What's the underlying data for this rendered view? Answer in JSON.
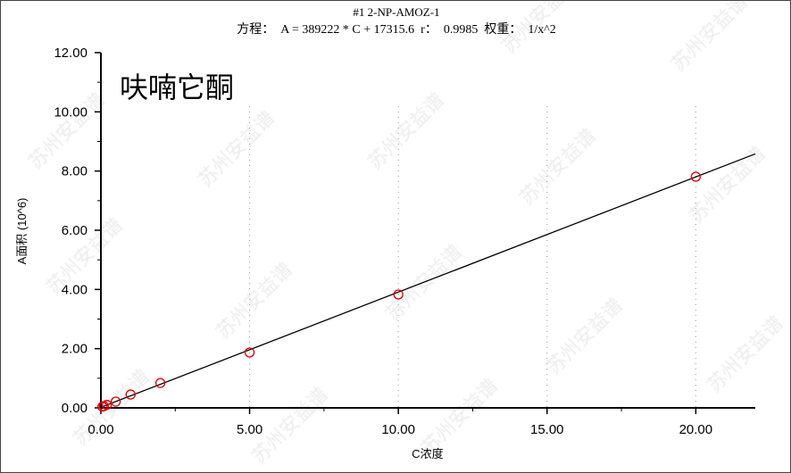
{
  "header": {
    "sample": "#1  2-NP-AMOZ-1",
    "equation": "方程：  A = 389222 * C + 17315.6  r：  0.9985  权重：  1/x^2"
  },
  "watermark": "苏州安益谱",
  "chart_data": {
    "type": "scatter",
    "title": "",
    "annotation": "呋喃它酮",
    "xlabel": "C浓度",
    "ylabel": "A面积 (10^6)",
    "xlim": [
      0,
      22
    ],
    "ylim": [
      0,
      12
    ],
    "xticks": [
      "0.00",
      "5.00",
      "10.00",
      "15.00",
      "20.00"
    ],
    "yticks": [
      "0.00",
      "2.00",
      "4.00",
      "6.00",
      "8.00",
      "10.00",
      "12.00"
    ],
    "grid": "dotted vertical at major x ticks",
    "points": {
      "x": [
        0.05,
        0.1,
        0.2,
        0.5,
        1,
        2,
        5,
        10,
        20
      ],
      "y": [
        0.04,
        0.06,
        0.1,
        0.21,
        0.45,
        0.84,
        1.87,
        3.83,
        7.81
      ]
    },
    "fit_line": {
      "slope": 0.389222,
      "intercept": 0.0173156
    },
    "colors": {
      "points": "#e00000",
      "line": "#000000"
    }
  }
}
